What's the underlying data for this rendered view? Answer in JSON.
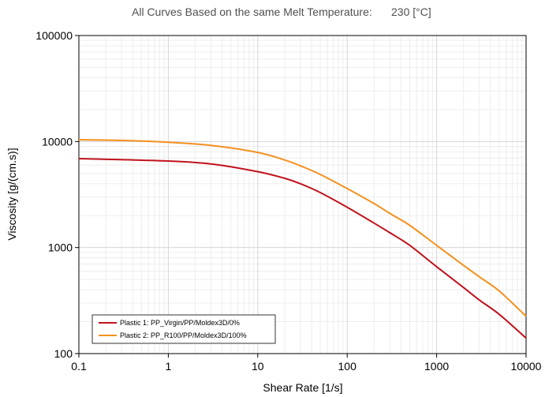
{
  "header": {
    "caption": "All Curves Based on the same Melt Temperature:",
    "value": "230 [°C]"
  },
  "chart_data": {
    "type": "line",
    "title": "",
    "xlabel": "Shear Rate [1/s]",
    "ylabel": "Viscosity [g/(cm.s)]",
    "xscale": "log",
    "yscale": "log",
    "xlim": [
      0.1,
      10000
    ],
    "ylim": [
      100,
      100000
    ],
    "x_ticks": [
      0.1,
      1,
      10,
      100,
      1000,
      10000
    ],
    "x_tick_labels": [
      "0.1",
      "1",
      "10",
      "100",
      "1000",
      "10000"
    ],
    "y_ticks": [
      100,
      1000,
      10000,
      100000
    ],
    "y_tick_labels": [
      "100",
      "1000",
      "10000",
      "100000"
    ],
    "grid": true,
    "legend_position": "bottom-left",
    "series": [
      {
        "name": "Plastic 1: PP_Virgin/PP/Moldex3D/0%",
        "color": "#c0121c",
        "x": [
          0.1,
          0.3,
          1,
          3,
          10,
          20,
          30,
          50,
          100,
          200,
          300,
          500,
          1000,
          2000,
          3000,
          5000,
          10000
        ],
        "y": [
          6900,
          6750,
          6550,
          6150,
          5200,
          4500,
          4000,
          3300,
          2400,
          1700,
          1380,
          1050,
          660,
          420,
          320,
          235,
          140
        ]
      },
      {
        "name": "Plastic 2: PP_R100/PP/Moldex3D/100%",
        "color": "#f4901e",
        "x": [
          0.1,
          0.3,
          1,
          3,
          10,
          20,
          30,
          50,
          100,
          200,
          300,
          500,
          1000,
          2000,
          3000,
          5000,
          10000
        ],
        "y": [
          10400,
          10250,
          9850,
          9200,
          7900,
          6700,
          5900,
          4900,
          3600,
          2600,
          2100,
          1620,
          1050,
          680,
          530,
          390,
          225
        ]
      }
    ]
  }
}
